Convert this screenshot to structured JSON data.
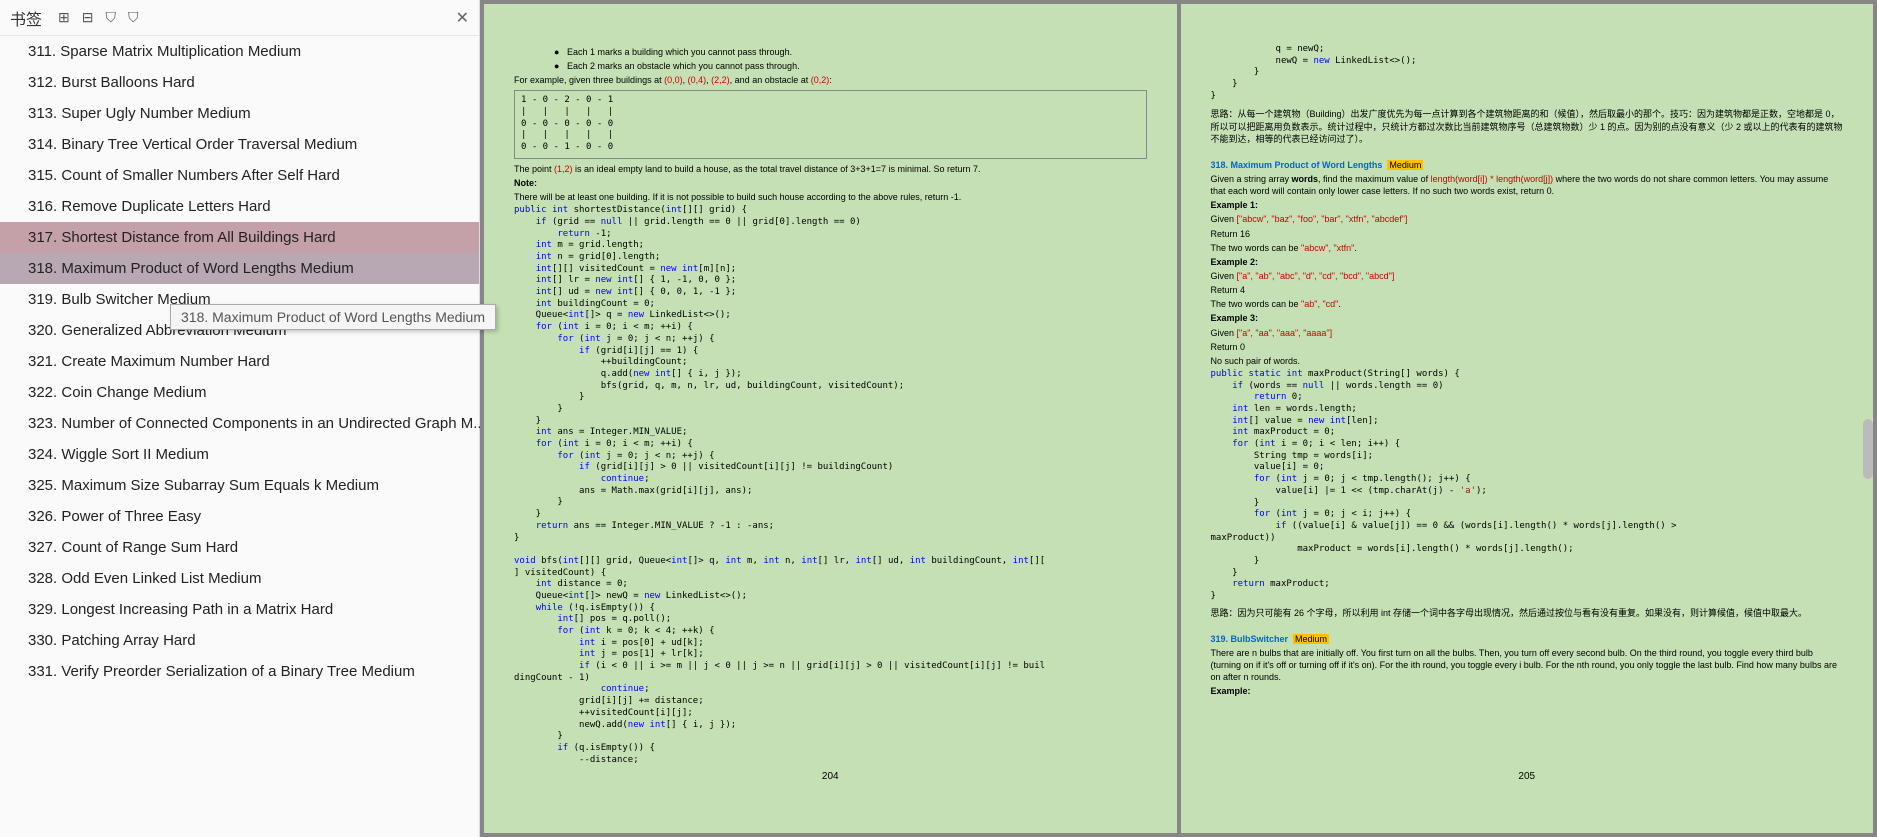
{
  "sidebar": {
    "title": "书签",
    "items": [
      {
        "label": "311. Sparse Matrix Multiplication   Medium"
      },
      {
        "label": "312. Burst Balloons   Hard"
      },
      {
        "label": "313. Super Ugly Number   Medium"
      },
      {
        "label": "314. Binary Tree Vertical Order Traversal   Medium"
      },
      {
        "label": "315. Count of Smaller Numbers After Self   Hard"
      },
      {
        "label": "316. Remove Duplicate Letters   Hard"
      },
      {
        "label": "317. Shortest Distance from All Buildings   Hard"
      },
      {
        "label": "318. Maximum Product of Word Lengths   Medium"
      },
      {
        "label": "319. Bulb Switcher   Medium"
      },
      {
        "label": "320. Generalized Abbreviation   Medium"
      },
      {
        "label": "321. Create Maximum Number   Hard"
      },
      {
        "label": "322. Coin Change   Medium"
      },
      {
        "label": "323. Number of Connected Components in an Undirected Graph   M..."
      },
      {
        "label": "324. Wiggle Sort II   Medium"
      },
      {
        "label": "325. Maximum Size Subarray Sum Equals k   Medium"
      },
      {
        "label": "326. Power of Three   Easy"
      },
      {
        "label": "327. Count of Range Sum   Hard"
      },
      {
        "label": "328. Odd Even Linked List   Medium"
      },
      {
        "label": "329. Longest Increasing Path in a Matrix   Hard"
      },
      {
        "label": "330. Patching Array   Hard"
      },
      {
        "label": "331. Verify Preorder Serialization of a Binary Tree   Medium"
      }
    ],
    "tooltip": "318. Maximum Product of Word Lengths   Medium"
  },
  "page_left": {
    "num": "204",
    "bullet1": "Each 1 marks a building which you cannot pass through.",
    "bullet2": "Each 2 marks an obstacle which you cannot pass through.",
    "example_prefix": "For example, given three buildings at ",
    "coords1": "(0,0)",
    "coords2": "(0,4)",
    "coords3": "(2,2)",
    "example_mid": ", and an obstacle at ",
    "coords4": "(0,2)",
    "grid": "1 - 0 - 2 - 0 - 1\n|   |   |   |   |\n0 - 0 - 0 - 0 - 0\n|   |   |   |   |\n0 - 0 - 1 - 0 - 0",
    "point_text1": "The point ",
    "point_coord": "(1,2)",
    "point_text2": " is an ideal empty land to build a house, as the total travel distance of 3+3+1=7 is minimal. So return 7.",
    "note_label": "Note:",
    "note_text": "There will be at least one building. If it is not possible to build such house according to the above rules, return -1."
  },
  "page_right": {
    "num": "205",
    "title318": "318. Maximum Product of Word Lengths",
    "badge318": "Medium",
    "desc318a": "Given a string array ",
    "desc318_words": "words",
    "desc318b": ", find the maximum value of ",
    "desc318_formula": "length(word[i]) * length(word[j])",
    "desc318c": " where the two words do not share common letters. You may assume that each word will contain only lower case letters. If no such two words exist, return 0.",
    "ex1_label": "Example 1:",
    "ex1_given": "Given ",
    "ex1_arr": "[\"abcw\", \"baz\", \"foo\", \"bar\", \"xtfn\", \"abcdef\"]",
    "ex1_return": "Return 16",
    "ex1_explain": "The two words can be ",
    "ex1_words": "\"abcw\", \"xtfn\"",
    "ex2_label": "Example 2:",
    "ex2_given": "Given ",
    "ex2_arr": "[\"a\", \"ab\", \"abc\", \"d\", \"cd\", \"bcd\", \"abcd\"]",
    "ex2_return": "Return 4",
    "ex2_explain": "The two words can be ",
    "ex2_words": "\"ab\", \"cd\"",
    "ex3_label": "Example 3:",
    "ex3_given": "Given ",
    "ex3_arr": "[\"a\", \"aa\", \"aaa\", \"aaaa\"]",
    "ex3_return": "Return 0",
    "ex3_explain": "No such pair of words.",
    "silu318": "思路：因为只可能有 26 个字母，所以利用 int 存储一个词中各字母出现情况，然后通过按位与看有没有重复。如果没有，则计算候值，候值中取最大。",
    "title319": "319. BulbSwitcher",
    "badge319": "Medium",
    "desc319": "There are n bulbs that are initially off. You first turn on all the bulbs. Then, you turn off every second bulb. On the third round, you toggle every third bulb (turning on if it's off or turning off if it's on). For the ith round, you toggle every i bulb. For the nth round, you only toggle the last bulb. Find how many bulbs are on after n rounds.",
    "ex319_label": "Example:",
    "silu_top": "思路：从每一个建筑物（Building）出发广度优先为每一点计算到各个建筑物距离的和（候值），然后取最小的那个。技巧：因为建筑物都是正数，空地都是 0，所以可以把距离用负数表示。统计过程中，只统计方都过次数比当前建筑物序号（总建筑物数）少 1 的点。因为别的点没有意义（少 2 或以上的代表有的建筑物不能到达，相等的代表已经访问过了）。"
  }
}
